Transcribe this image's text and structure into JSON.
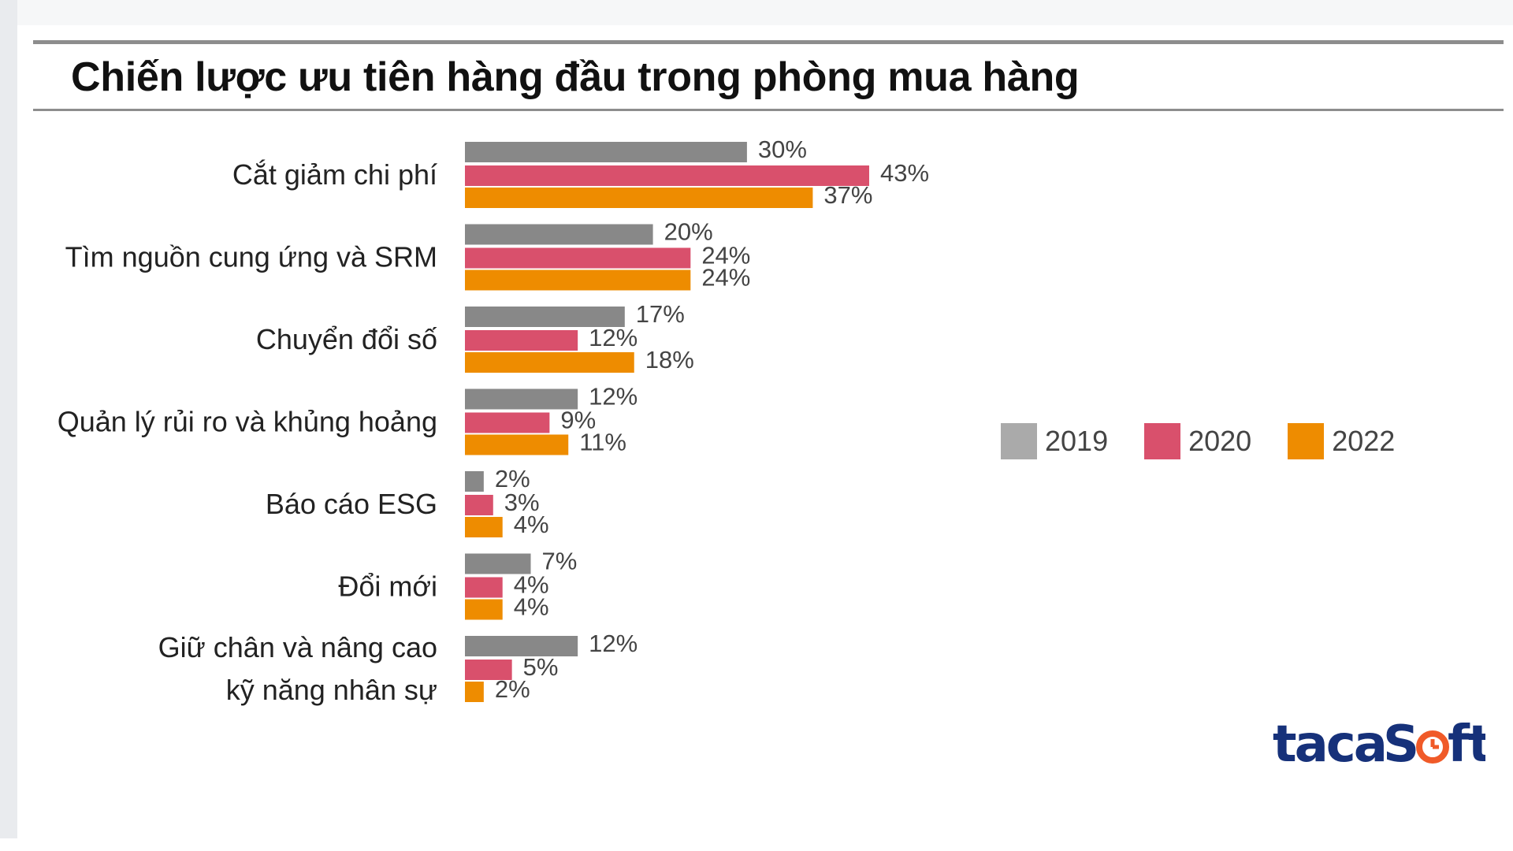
{
  "title": "Chiến lược ưu tiên hàng đầu trong phòng mua hàng",
  "colors": {
    "s2019": "#888888",
    "s2020": "#d9506c",
    "s2022": "#ee8c00",
    "legend2019": "#aaaaaa",
    "legend2020": "#d9506c",
    "legend2022": "#ee8c00",
    "logo_text": "#16317a",
    "logo_accent": "#f05a28"
  },
  "legend": [
    "2019",
    "2020",
    "2022"
  ],
  "logo": {
    "text": "tacaSoft",
    "icon": "clock-o-icon"
  },
  "chart_data": {
    "type": "bar",
    "orientation": "horizontal",
    "title": "Chiến lược ưu tiên hàng đầu trong phòng mua hàng",
    "categories": [
      [
        "Cắt giảm chi phí"
      ],
      [
        "Tìm nguồn cung ứng và SRM"
      ],
      [
        "Chuyển đổi số"
      ],
      [
        "Quản lý rủi ro và khủng hoảng"
      ],
      [
        "Báo cáo ESG"
      ],
      [
        "Đổi mới"
      ],
      [
        "Giữ chân và nâng cao",
        "kỹ năng nhân sự"
      ]
    ],
    "series": [
      {
        "name": "2019",
        "values": [
          30,
          20,
          17,
          12,
          2,
          7,
          12
        ]
      },
      {
        "name": "2020",
        "values": [
          43,
          24,
          12,
          9,
          3,
          4,
          5
        ]
      },
      {
        "name": "2022",
        "values": [
          37,
          24,
          18,
          11,
          4,
          4,
          2
        ]
      }
    ],
    "value_suffix": "%",
    "legend_position": "right",
    "grid": false
  }
}
